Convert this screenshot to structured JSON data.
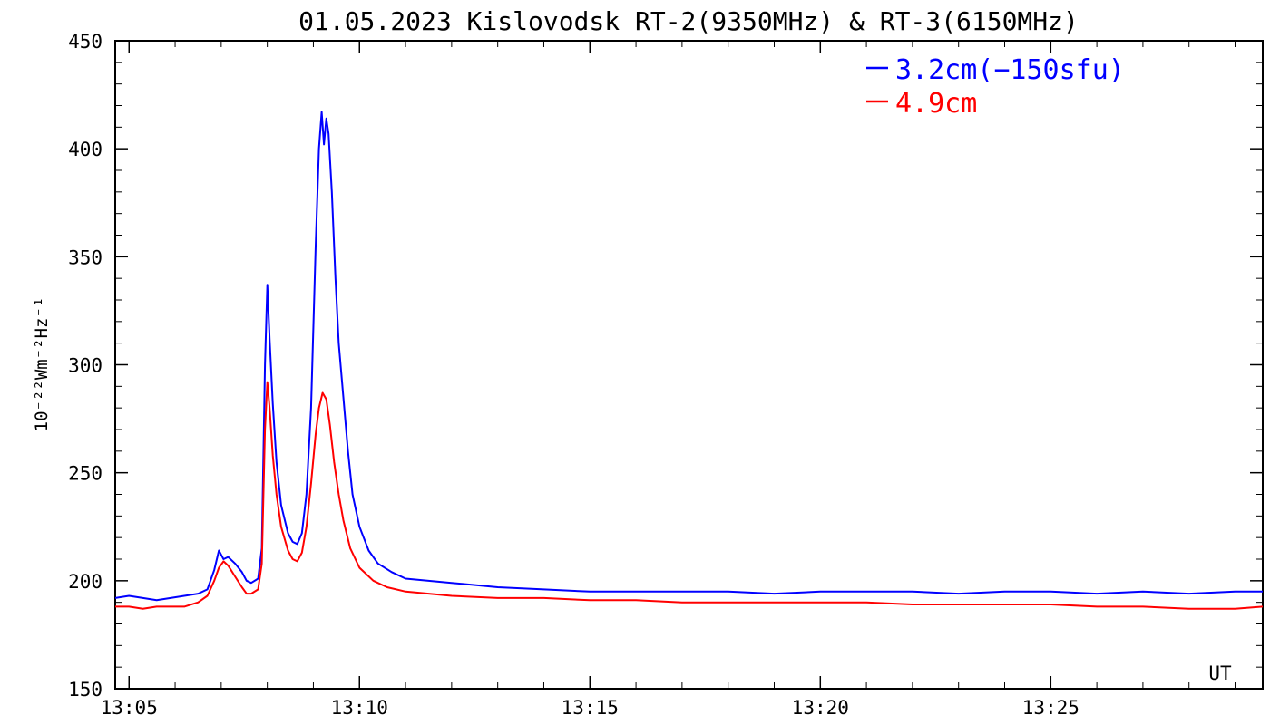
{
  "chart_data": {
    "type": "line",
    "title": "01.05.2023 Kislovodsk RT-2(9350MHz) & RT-3(6150MHz)",
    "ylabel": "10⁻²²Wm⁻²Hz⁻¹",
    "xlabel": "UT",
    "x_unit_label": "UT",
    "xlim": [
      "13:04.7",
      "13:29.6"
    ],
    "ylim": [
      150,
      450
    ],
    "yticks": [
      150,
      200,
      250,
      300,
      350,
      400,
      450
    ],
    "xticks": [
      "13:05",
      "13:10",
      "13:15",
      "13:20",
      "13:25"
    ],
    "legend_position": "top-right",
    "grid": false,
    "series": [
      {
        "name": "3.2cm(−150sfu)",
        "color": "#0000ff",
        "points": [
          [
            "13:04.70",
            192
          ],
          [
            "13:05.00",
            193
          ],
          [
            "13:05.30",
            192
          ],
          [
            "13:05.60",
            191
          ],
          [
            "13:05.90",
            192
          ],
          [
            "13:06.20",
            193
          ],
          [
            "13:06.50",
            194
          ],
          [
            "13:06.70",
            196
          ],
          [
            "13:06.85",
            205
          ],
          [
            "13:06.95",
            214
          ],
          [
            "13:07.05",
            210
          ],
          [
            "13:07.15",
            211
          ],
          [
            "13:07.30",
            208
          ],
          [
            "13:07.45",
            204
          ],
          [
            "13:07.55",
            200
          ],
          [
            "13:07.65",
            199
          ],
          [
            "13:07.80",
            201
          ],
          [
            "13:07.88",
            215
          ],
          [
            "13:07.95",
            300
          ],
          [
            "13:08.00",
            337
          ],
          [
            "13:08.05",
            312
          ],
          [
            "13:08.12",
            282
          ],
          [
            "13:08.20",
            255
          ],
          [
            "13:08.30",
            235
          ],
          [
            "13:08.45",
            222
          ],
          [
            "13:08.55",
            218
          ],
          [
            "13:08.65",
            217
          ],
          [
            "13:08.75",
            222
          ],
          [
            "13:08.85",
            240
          ],
          [
            "13:08.95",
            280
          ],
          [
            "13:09.05",
            355
          ],
          [
            "13:09.12",
            400
          ],
          [
            "13:09.18",
            417
          ],
          [
            "13:09.23",
            402
          ],
          [
            "13:09.28",
            414
          ],
          [
            "13:09.33",
            407
          ],
          [
            "13:09.40",
            380
          ],
          [
            "13:09.48",
            340
          ],
          [
            "13:09.55",
            310
          ],
          [
            "13:09.65",
            285
          ],
          [
            "13:09.75",
            260
          ],
          [
            "13:09.85",
            240
          ],
          [
            "13:10.00",
            225
          ],
          [
            "13:10.20",
            214
          ],
          [
            "13:10.40",
            208
          ],
          [
            "13:10.70",
            204
          ],
          [
            "13:11.00",
            201
          ],
          [
            "13:12.00",
            199
          ],
          [
            "13:13.00",
            197
          ],
          [
            "13:14.00",
            196
          ],
          [
            "13:15.00",
            195
          ],
          [
            "13:16.00",
            195
          ],
          [
            "13:17.00",
            195
          ],
          [
            "13:18.00",
            195
          ],
          [
            "13:19.00",
            194
          ],
          [
            "13:20.00",
            195
          ],
          [
            "13:21.00",
            195
          ],
          [
            "13:22.00",
            195
          ],
          [
            "13:23.00",
            194
          ],
          [
            "13:24.00",
            195
          ],
          [
            "13:25.00",
            195
          ],
          [
            "13:26.00",
            194
          ],
          [
            "13:27.00",
            195
          ],
          [
            "13:28.00",
            194
          ],
          [
            "13:29.00",
            195
          ],
          [
            "13:29.60",
            195
          ]
        ]
      },
      {
        "name": "4.9cm",
        "color": "#ff0000",
        "points": [
          [
            "13:04.70",
            188
          ],
          [
            "13:05.00",
            188
          ],
          [
            "13:05.30",
            187
          ],
          [
            "13:05.60",
            188
          ],
          [
            "13:05.90",
            188
          ],
          [
            "13:06.20",
            188
          ],
          [
            "13:06.50",
            190
          ],
          [
            "13:06.70",
            193
          ],
          [
            "13:06.85",
            200
          ],
          [
            "13:06.95",
            206
          ],
          [
            "13:07.05",
            209
          ],
          [
            "13:07.15",
            207
          ],
          [
            "13:07.30",
            202
          ],
          [
            "13:07.45",
            197
          ],
          [
            "13:07.55",
            194
          ],
          [
            "13:07.65",
            194
          ],
          [
            "13:07.80",
            196
          ],
          [
            "13:07.88",
            208
          ],
          [
            "13:07.95",
            270
          ],
          [
            "13:08.00",
            292
          ],
          [
            "13:08.05",
            280
          ],
          [
            "13:08.12",
            258
          ],
          [
            "13:08.20",
            240
          ],
          [
            "13:08.30",
            225
          ],
          [
            "13:08.45",
            214
          ],
          [
            "13:08.55",
            210
          ],
          [
            "13:08.65",
            209
          ],
          [
            "13:08.75",
            213
          ],
          [
            "13:08.85",
            225
          ],
          [
            "13:08.95",
            245
          ],
          [
            "13:09.05",
            268
          ],
          [
            "13:09.12",
            280
          ],
          [
            "13:09.20",
            287
          ],
          [
            "13:09.28",
            284
          ],
          [
            "13:09.36",
            272
          ],
          [
            "13:09.45",
            255
          ],
          [
            "13:09.55",
            240
          ],
          [
            "13:09.65",
            228
          ],
          [
            "13:09.80",
            215
          ],
          [
            "13:10.00",
            206
          ],
          [
            "13:10.30",
            200
          ],
          [
            "13:10.60",
            197
          ],
          [
            "13:11.00",
            195
          ],
          [
            "13:12.00",
            193
          ],
          [
            "13:13.00",
            192
          ],
          [
            "13:14.00",
            192
          ],
          [
            "13:15.00",
            191
          ],
          [
            "13:16.00",
            191
          ],
          [
            "13:17.00",
            190
          ],
          [
            "13:18.00",
            190
          ],
          [
            "13:19.00",
            190
          ],
          [
            "13:20.00",
            190
          ],
          [
            "13:21.00",
            190
          ],
          [
            "13:22.00",
            189
          ],
          [
            "13:23.00",
            189
          ],
          [
            "13:24.00",
            189
          ],
          [
            "13:25.00",
            189
          ],
          [
            "13:26.00",
            188
          ],
          [
            "13:27.00",
            188
          ],
          [
            "13:28.00",
            187
          ],
          [
            "13:29.00",
            187
          ],
          [
            "13:29.60",
            188
          ]
        ]
      }
    ]
  }
}
